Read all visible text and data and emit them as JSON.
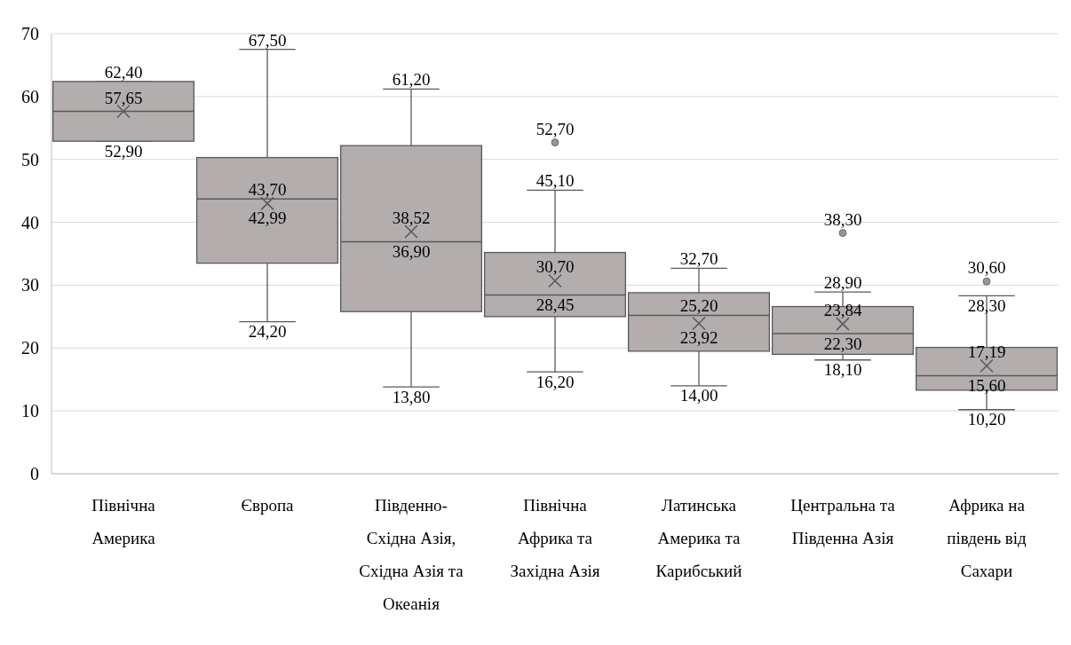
{
  "chart_data": {
    "type": "box",
    "categories": [
      "Північна Америка",
      "Європа",
      "Південно-Східна Азія, Східна Азія та Океанія",
      "Північна Африка та Західна Азія",
      "Латинська Америка та Карибський",
      "Центральна та Південна Азія",
      "Африка на південь від Сахари"
    ],
    "boxes": [
      {
        "low": 52.9,
        "q1": 52.9,
        "median": 57.65,
        "q3": 62.4,
        "high": 62.4,
        "mean": 57.65
      },
      {
        "low": 24.2,
        "q1": 33.5,
        "median": 43.7,
        "q3": 50.3,
        "high": 67.5,
        "mean": 42.99
      },
      {
        "low": 13.8,
        "q1": 25.8,
        "median": 36.9,
        "q3": 52.2,
        "high": 61.2,
        "mean": 38.52
      },
      {
        "low": 16.2,
        "q1": 25,
        "median": 28.45,
        "q3": 35.2,
        "high": 45.1,
        "mean": 30.7,
        "outliers": [
          52.7
        ]
      },
      {
        "low": 14,
        "q1": 19.5,
        "median": 25.2,
        "q3": 28.8,
        "high": 32.7,
        "mean": 23.92
      },
      {
        "low": 18.1,
        "q1": 19,
        "median": 22.3,
        "q3": 26.6,
        "high": 28.9,
        "mean": 23.84,
        "outliers": [
          38.3
        ]
      },
      {
        "low": 10.2,
        "q1": 13.3,
        "median": 15.6,
        "q3": 20.1,
        "high": 28.3,
        "mean": 17.19,
        "outliers": [
          30.6
        ]
      }
    ],
    "color": "#b3adad",
    "ylim": [
      0,
      70
    ],
    "yticks": [
      0,
      10,
      20,
      30,
      40,
      50,
      60,
      70
    ],
    "grid": "y",
    "annotations": [
      {
        "text": "62,40",
        "x": "Північна Америка",
        "y": 62.4
      },
      {
        "text": "57,65",
        "x": "Північна Америка",
        "y": 57.65
      },
      {
        "text": "52,90",
        "x": "Північна Америка",
        "y": 52.9
      },
      {
        "text": "67,50",
        "x": "Європа",
        "y": 67.5
      },
      {
        "text": "43,70",
        "x": "Європа",
        "y": 43.7
      },
      "42,99",
      {
        "text": "24,20",
        "x": "Європа",
        "y": 24.2
      },
      {
        "text": "61,20",
        "x": "Південно-Східна Азія, Східна Азія та Океанія",
        "y": 61.2
      },
      "38,52",
      {
        "text": "36,90",
        "x": "Південно-Східна Азія, Східна Азія та Океанія",
        "y": 36.9
      },
      {
        "text": "13,80",
        "x": "Південно-Східна Азія, Східна Азія та Океанія",
        "y": 13.8
      },
      "52,70",
      {
        "text": "45,10",
        "x": "Північна Африка та Західна Азія",
        "y": 45.1
      },
      "30,70",
      {
        "text": "28,45",
        "x": "Північна Африка та Західна Азія",
        "y": 28.45
      },
      {
        "text": "16,20",
        "x": "Північна Африка та Західна Азія",
        "y": 16.2
      },
      {
        "text": "32,70",
        "x": "Латинська Америка та Карибський",
        "y": 32.7
      },
      {
        "text": "25,20",
        "x": "Латинська Америка та Карибський",
        "y": 25.2
      },
      "23,92",
      {
        "text": "14,00",
        "x": "Латинська Америка та Карибський",
        "y": 14
      },
      "38,30",
      {
        "text": "28,90",
        "x": "Центральна та Південна Азія",
        "y": 28.9
      },
      "23,84",
      {
        "text": "22,30",
        "x": "Центральна та Південна Азія",
        "y": 22.3
      },
      {
        "text": "18,10",
        "x": "Центральна та Південна Азія",
        "y": 18.1
      },
      "30,60",
      {
        "text": "28,30",
        "x": "Африка на південь від Сахари",
        "y": 28.3
      },
      "17,19",
      {
        "text": "15,60",
        "x": "Африка на південь від Сахари",
        "y": 15.6
      },
      {
        "text": "10,20",
        "x": "Африка на південь від Сахари",
        "y": 10.2
      }
    ]
  }
}
